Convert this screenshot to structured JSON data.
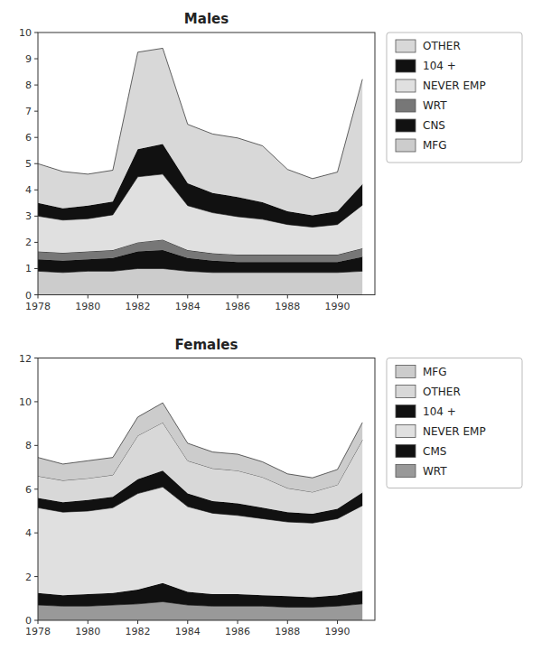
{
  "chart_data": [
    {
      "type": "area",
      "title": "Males",
      "stacked": true,
      "grid": false,
      "legend": "right",
      "x": [
        1978,
        1979,
        1980,
        1981,
        1982,
        1983,
        1984,
        1985,
        1986,
        1987,
        1988,
        1989,
        1990,
        1991
      ],
      "xlim": [
        1978,
        1991.5
      ],
      "xticks": [
        1978,
        1980,
        1982,
        1984,
        1986,
        1988,
        1990
      ],
      "ylim": [
        0,
        10
      ],
      "yticks": [
        0,
        1,
        2,
        3,
        4,
        5,
        6,
        7,
        8,
        9,
        10
      ],
      "series": [
        {
          "name": "MFG",
          "color": "#cccccc",
          "values": [
            0.9,
            0.85,
            0.9,
            0.9,
            1.0,
            1.0,
            0.9,
            0.85,
            0.85,
            0.85,
            0.85,
            0.85,
            0.85,
            0.9
          ]
        },
        {
          "name": "CNS",
          "color": "#111111",
          "values": [
            0.45,
            0.45,
            0.45,
            0.5,
            0.65,
            0.7,
            0.5,
            0.45,
            0.4,
            0.4,
            0.4,
            0.4,
            0.4,
            0.55
          ]
        },
        {
          "name": "WRT",
          "color": "#777777",
          "values": [
            0.3,
            0.3,
            0.3,
            0.3,
            0.35,
            0.4,
            0.3,
            0.28,
            0.28,
            0.28,
            0.28,
            0.28,
            0.28,
            0.32
          ]
        },
        {
          "name": "NEVER EMP",
          "color": "#e0e0e0",
          "values": [
            1.35,
            1.25,
            1.25,
            1.35,
            2.5,
            2.5,
            1.7,
            1.55,
            1.45,
            1.35,
            1.15,
            1.05,
            1.15,
            1.65
          ]
        },
        {
          "name": "104 +",
          "color": "#111111",
          "values": [
            0.5,
            0.45,
            0.5,
            0.5,
            1.05,
            1.15,
            0.85,
            0.75,
            0.75,
            0.65,
            0.5,
            0.45,
            0.5,
            0.8
          ]
        },
        {
          "name": "OTHER",
          "color": "#d8d8d8",
          "values": [
            1.5,
            1.4,
            1.2,
            1.2,
            3.7,
            3.65,
            2.25,
            2.25,
            2.25,
            2.15,
            1.6,
            1.4,
            1.5,
            4.0
          ]
        }
      ]
    },
    {
      "type": "area",
      "title": "Females",
      "stacked": true,
      "grid": false,
      "legend": "right",
      "x": [
        1978,
        1979,
        1980,
        1981,
        1982,
        1983,
        1984,
        1985,
        1986,
        1987,
        1988,
        1989,
        1990,
        1991
      ],
      "xlim": [
        1978,
        1991.5
      ],
      "xticks": [
        1978,
        1980,
        1982,
        1984,
        1986,
        1988,
        1990
      ],
      "ylim": [
        0,
        12
      ],
      "yticks": [
        0,
        2,
        4,
        6,
        8,
        10,
        12
      ],
      "series": [
        {
          "name": "WRT",
          "color": "#999999",
          "values": [
            0.7,
            0.65,
            0.65,
            0.7,
            0.75,
            0.85,
            0.7,
            0.65,
            0.65,
            0.65,
            0.6,
            0.6,
            0.65,
            0.75
          ]
        },
        {
          "name": "CMS",
          "color": "#111111",
          "values": [
            0.55,
            0.5,
            0.55,
            0.55,
            0.65,
            0.85,
            0.6,
            0.55,
            0.55,
            0.5,
            0.5,
            0.45,
            0.5,
            0.6
          ]
        },
        {
          "name": "NEVER EMP",
          "color": "#e0e0e0",
          "values": [
            3.9,
            3.8,
            3.8,
            3.9,
            4.4,
            4.4,
            3.9,
            3.7,
            3.6,
            3.5,
            3.4,
            3.4,
            3.5,
            3.9
          ]
        },
        {
          "name": "104 +",
          "color": "#111111",
          "values": [
            0.45,
            0.45,
            0.5,
            0.5,
            0.65,
            0.75,
            0.6,
            0.55,
            0.55,
            0.5,
            0.45,
            0.42,
            0.45,
            0.6
          ]
        },
        {
          "name": "OTHER",
          "color": "#d8d8d8",
          "values": [
            1.0,
            1.0,
            1.0,
            1.0,
            2.0,
            2.2,
            1.5,
            1.5,
            1.5,
            1.4,
            1.1,
            1.0,
            1.1,
            2.4
          ]
        },
        {
          "name": "MFG",
          "color": "#cccccc",
          "values": [
            0.85,
            0.75,
            0.8,
            0.8,
            0.85,
            0.9,
            0.8,
            0.75,
            0.75,
            0.7,
            0.65,
            0.65,
            0.7,
            0.8
          ]
        }
      ]
    }
  ]
}
